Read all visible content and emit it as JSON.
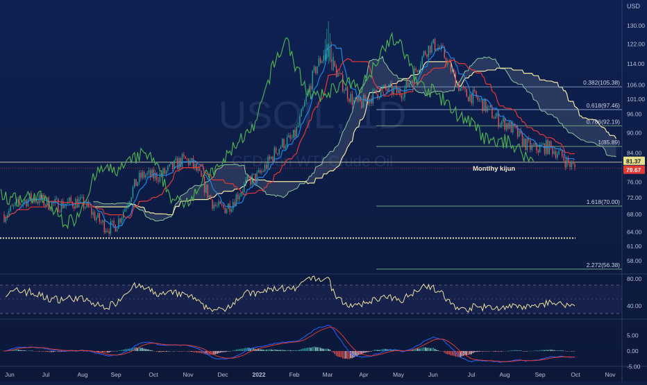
{
  "chart_data": {
    "type": "line",
    "currency": "USD",
    "watermark": {
      "symbol": "USOIL, 1D",
      "name": "CFDs on WTI Crude Oil"
    },
    "price_axis": {
      "ticks": [
        "130.00",
        "122.00",
        "114.00",
        "106.00",
        "101.00",
        "96.00",
        "90.00",
        "84.00",
        "76.00",
        "72.00",
        "68.00",
        "64.00",
        "61.00",
        "58.00"
      ],
      "scale": "log"
    },
    "time_axis": {
      "labels": [
        "Jun",
        "Jul",
        "Aug",
        "Sep",
        "Oct",
        "Nov",
        "Dec",
        "2022",
        "Feb",
        "Mar",
        "Apr",
        "May",
        "Jun",
        "Jul",
        "Aug",
        "Sep",
        "Oct",
        "Nov"
      ]
    },
    "current_prices": [
      {
        "value": "81.37",
        "color": "#e8e08a"
      },
      {
        "value": "79.67",
        "color": "#e53935"
      }
    ],
    "fibonacci_levels": [
      {
        "label": "0.382(105.38)",
        "value": 105.38
      },
      {
        "label": "0.618(97.46)",
        "value": 97.46
      },
      {
        "label": "0.786(92.19)",
        "value": 92.19
      },
      {
        "label": "1(85.89)",
        "value": 85.89
      },
      {
        "label": "1.618(70.00)",
        "value": 70.0
      },
      {
        "label": "2.272(56.38)",
        "value": 56.38
      }
    ],
    "annotation": {
      "text": "Montlhy kijun",
      "value": 81.37
    },
    "support_level": 62.7,
    "price_series_approx": {
      "x": [
        "Jun",
        "Jul",
        "Aug",
        "Sep",
        "Oct",
        "Nov",
        "Dec",
        "2022",
        "Feb",
        "Mar",
        "Apr",
        "May",
        "Jun",
        "Jul",
        "Aug",
        "Sep",
        "Oct"
      ],
      "y": [
        68,
        72,
        70,
        66,
        77,
        82,
        70,
        76,
        89,
        115,
        100,
        104,
        120,
        104,
        92,
        86,
        80
      ]
    },
    "series": [
      {
        "name": "",
        "color": "#1e88e5"
      },
      {
        "name": "",
        "color": "#e53935"
      },
      {
        "name": "",
        "color": "#4caf50"
      },
      {
        "name": "",
        "color": "#f5e9a8"
      }
    ],
    "rsi_panel": {
      "ticks": [
        "80.00",
        "40.00"
      ],
      "color": "#f0e2a0"
    },
    "macd_panel": {
      "ticks": [
        "5.00",
        "0.00",
        "-5.00"
      ],
      "macd_color": "#2962ff",
      "signal_color": "#e53935"
    }
  }
}
